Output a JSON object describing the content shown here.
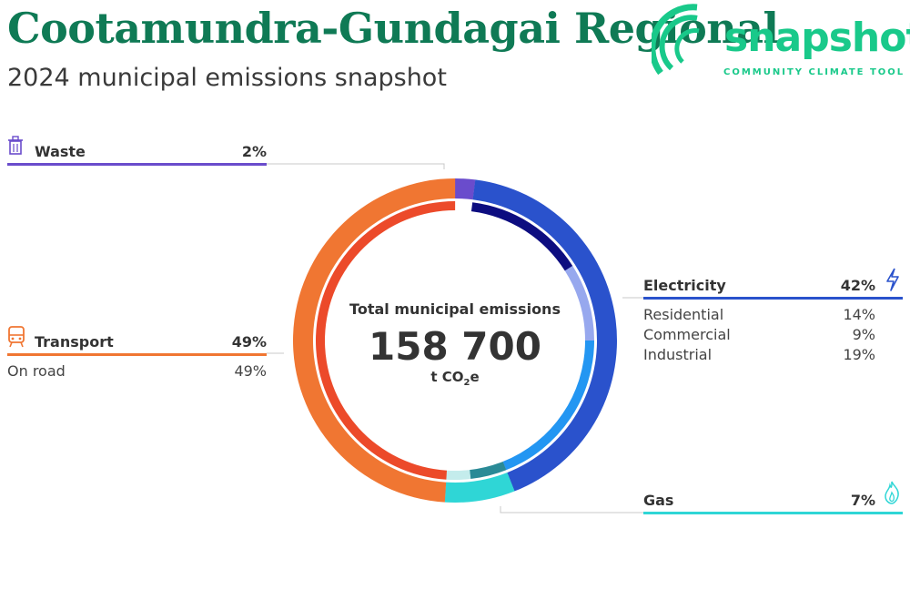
{
  "header": {
    "title": "Cootamundra-Gundagai Regional",
    "subtitle": "2024 municipal emissions snapshot"
  },
  "logo": {
    "word": "snapshot",
    "tagline": "COMMUNITY CLIMATE TOOL",
    "color": "#19c98a"
  },
  "center": {
    "label": "Total municipal emissions",
    "value": "158 700",
    "unit_prefix": "t CO",
    "unit_sub": "2",
    "unit_suffix": "e"
  },
  "categories": {
    "waste": {
      "label": "Waste",
      "pct": "2%",
      "color": "#6a4ccc",
      "icon": "trash-icon"
    },
    "transport": {
      "label": "Transport",
      "pct": "49%",
      "color": "#f07632",
      "icon": "train-icon",
      "subs": [
        {
          "label": "On road",
          "pct": "49%"
        }
      ]
    },
    "electricity": {
      "label": "Electricity",
      "pct": "42%",
      "color": "#2a52cc",
      "icon": "lightning-icon",
      "subs": [
        {
          "label": "Residential",
          "pct": "14%"
        },
        {
          "label": "Commercial",
          "pct": "9%"
        },
        {
          "label": "Industrial",
          "pct": "19%"
        }
      ]
    },
    "gas": {
      "label": "Gas",
      "pct": "7%",
      "color": "#2fd6d6",
      "icon": "flame-icon"
    }
  },
  "chart_data": {
    "type": "pie",
    "title": "2024 municipal emissions snapshot",
    "total": 158700,
    "unit": "t CO2e",
    "outer_ring": [
      {
        "name": "Waste",
        "value": 2,
        "color": "#6a4ccc"
      },
      {
        "name": "Electricity",
        "value": 42,
        "color": "#2a52cc"
      },
      {
        "name": "Gas",
        "value": 7,
        "color": "#2fd6d6"
      },
      {
        "name": "Transport",
        "value": 49,
        "color": "#f07632"
      }
    ],
    "inner_ring": [
      {
        "name": "Waste",
        "value": 2,
        "color": "#ffffff"
      },
      {
        "name": "Residential",
        "value": 14,
        "color": "#0d0d80"
      },
      {
        "name": "Commercial",
        "value": 9,
        "color": "#97a8ee"
      },
      {
        "name": "Industrial",
        "value": 19,
        "color": "#2396f2"
      },
      {
        "name": "Gas",
        "value": 7,
        "color": "#2a8a96",
        "split": [
          0.6,
          "#c4ecec"
        ]
      },
      {
        "name": "On road",
        "value": 49,
        "color": "#ec4a2a"
      }
    ]
  }
}
